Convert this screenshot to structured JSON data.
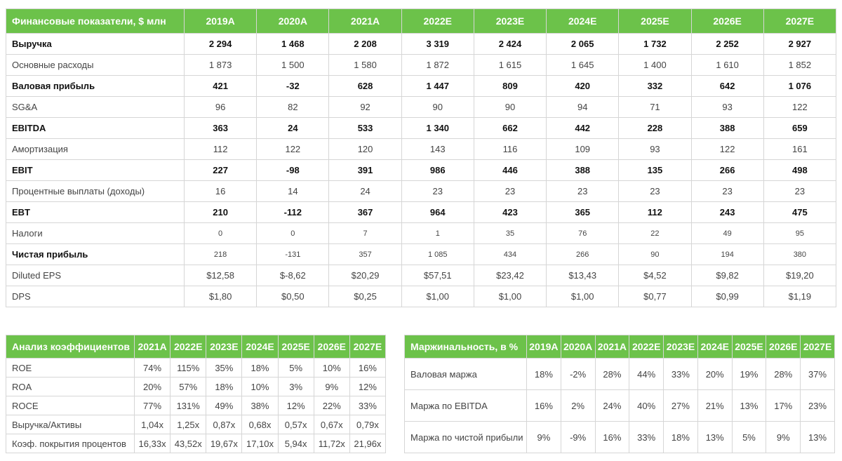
{
  "main": {
    "header": [
      "Финансовые показатели, $ млн",
      "2019A",
      "2020A",
      "2021A",
      "2022E",
      "2023E",
      "2024E",
      "2025E",
      "2026E",
      "2027E"
    ],
    "rows": [
      {
        "label": "Выручка",
        "bold": true,
        "values": [
          "2 294",
          "1 468",
          "2 208",
          "3 319",
          "2 424",
          "2 065",
          "1 732",
          "2 252",
          "2 927"
        ]
      },
      {
        "label": "Основные расходы",
        "bold": false,
        "values": [
          "1 873",
          "1 500",
          "1 580",
          "1 872",
          "1 615",
          "1 645",
          "1 400",
          "1 610",
          "1 852"
        ]
      },
      {
        "label": "Валовая прибыль",
        "bold": true,
        "values": [
          "421",
          "-32",
          "628",
          "1 447",
          "809",
          "420",
          "332",
          "642",
          "1 076"
        ]
      },
      {
        "label": "SG&A",
        "bold": false,
        "values": [
          "96",
          "82",
          "92",
          "90",
          "90",
          "94",
          "71",
          "93",
          "122"
        ]
      },
      {
        "label": "EBITDA",
        "bold": true,
        "values": [
          "363",
          "24",
          "533",
          "1 340",
          "662",
          "442",
          "228",
          "388",
          "659"
        ]
      },
      {
        "label": "Амортизация",
        "bold": false,
        "values": [
          "112",
          "122",
          "120",
          "143",
          "116",
          "109",
          "93",
          "122",
          "161"
        ]
      },
      {
        "label": "EBIT",
        "bold": true,
        "values": [
          "227",
          "-98",
          "391",
          "986",
          "446",
          "388",
          "135",
          "266",
          "498"
        ]
      },
      {
        "label": "Процентные выплаты (доходы)",
        "bold": false,
        "values": [
          "16",
          "14",
          "24",
          "23",
          "23",
          "23",
          "23",
          "23",
          "23"
        ]
      },
      {
        "label": "EBT",
        "bold": true,
        "values": [
          "210",
          "-112",
          "367",
          "964",
          "423",
          "365",
          "112",
          "243",
          "475"
        ]
      },
      {
        "label": "Налоги",
        "bold": false,
        "small": true,
        "values": [
          "0",
          "0",
          "7",
          "1",
          "35",
          "76",
          "22",
          "49",
          "95"
        ]
      },
      {
        "label": "Чистая прибыль",
        "bold": false,
        "labelBold": true,
        "small": true,
        "values": [
          "218",
          "-131",
          "357",
          "1 085",
          "434",
          "266",
          "90",
          "194",
          "380"
        ]
      },
      {
        "label": "Diluted EPS",
        "bold": false,
        "values": [
          "$12,58",
          "$-8,62",
          "$20,29",
          "$57,51",
          "$23,42",
          "$13,43",
          "$4,52",
          "$9,82",
          "$19,20"
        ]
      },
      {
        "label": "DPS",
        "bold": false,
        "values": [
          "$1,80",
          "$0,50",
          "$0,25",
          "$1,00",
          "$1,00",
          "$1,00",
          "$0,77",
          "$0,99",
          "$1,19"
        ]
      }
    ]
  },
  "ratios": {
    "header": [
      "Анализ коэффициентов",
      "2021A",
      "2022E",
      "2023E",
      "2024E",
      "2025E",
      "2026E",
      "2027E"
    ],
    "rows": [
      {
        "label": "ROE",
        "values": [
          "74%",
          "115%",
          "35%",
          "18%",
          "5%",
          "10%",
          "16%"
        ]
      },
      {
        "label": "ROA",
        "values": [
          "20%",
          "57%",
          "18%",
          "10%",
          "3%",
          "9%",
          "12%"
        ]
      },
      {
        "label": "ROCE",
        "values": [
          "77%",
          "131%",
          "49%",
          "38%",
          "12%",
          "22%",
          "33%"
        ]
      },
      {
        "label": "Выручка/Активы",
        "values": [
          "1,04x",
          "1,25x",
          "0,87x",
          "0,68x",
          "0,57x",
          "0,67x",
          "0,79x"
        ]
      },
      {
        "label": "Коэф. покрытия процентов",
        "values": [
          "16,33x",
          "43,52x",
          "19,67x",
          "17,10x",
          "5,94x",
          "11,72x",
          "21,96x"
        ]
      }
    ]
  },
  "margins": {
    "header": [
      "Маржинальность, в %",
      "2019A",
      "2020A",
      "2021A",
      "2022E",
      "2023E",
      "2024E",
      "2025E",
      "2026E",
      "2027E"
    ],
    "rows": [
      {
        "label": "Валовая маржа",
        "values": [
          "18%",
          "-2%",
          "28%",
          "44%",
          "33%",
          "20%",
          "19%",
          "28%",
          "37%"
        ]
      },
      {
        "label": "Маржа по EBITDA",
        "values": [
          "16%",
          "2%",
          "24%",
          "40%",
          "27%",
          "21%",
          "13%",
          "17%",
          "23%"
        ]
      },
      {
        "label": "Маржа по чистой прибыли",
        "values": [
          "9%",
          "-9%",
          "16%",
          "33%",
          "18%",
          "13%",
          "5%",
          "9%",
          "13%"
        ]
      }
    ]
  },
  "colors": {
    "header_bg": "#6cc24a",
    "header_text": "#ffffff",
    "border": "#d6d6d6"
  }
}
